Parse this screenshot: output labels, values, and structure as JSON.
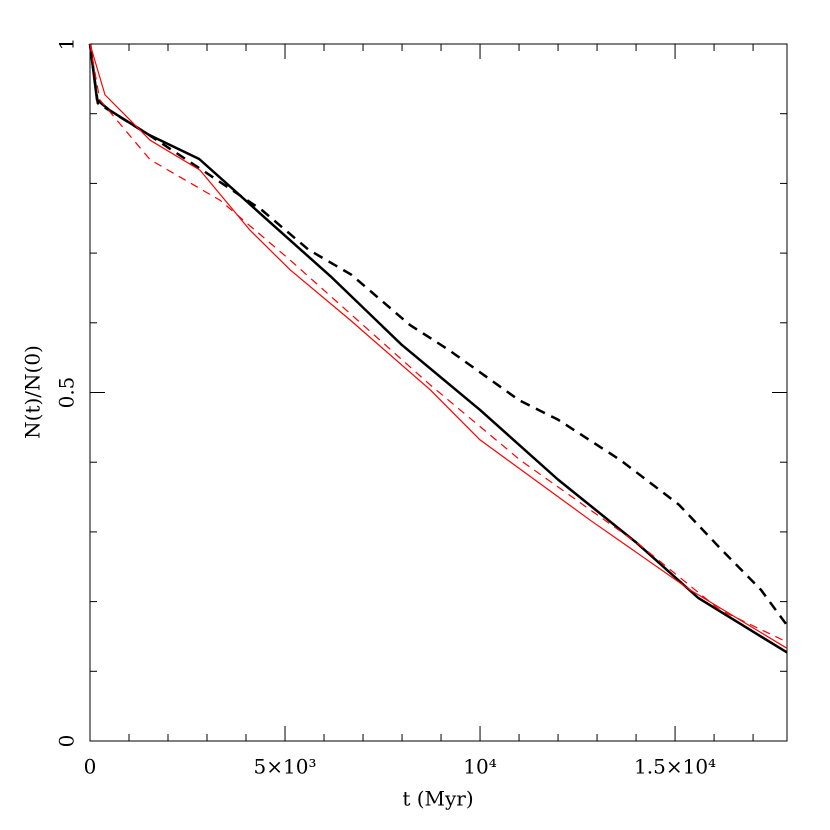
{
  "chart_data": {
    "type": "line",
    "xlabel": "t (Myr)",
    "ylabel": "N(t)/N(0)",
    "xlim": [
      0,
      17870
    ],
    "ylim": [
      0,
      1
    ],
    "xticks": [
      0,
      {
        "value": 5000,
        "label": "5×10³"
      },
      {
        "value": 10000,
        "label": "10⁴"
      },
      {
        "value": 15000,
        "label": "1.5×10⁴"
      }
    ],
    "xminorticks": [
      1000,
      2000,
      3000,
      4000,
      6000,
      7000,
      8000,
      9000,
      11000,
      12000,
      13000,
      14000,
      16000,
      17000
    ],
    "yticks": [
      0,
      0.5,
      1
    ],
    "yminorticks": [
      0.1,
      0.2,
      0.3,
      0.4,
      0.6,
      0.7,
      0.8,
      0.9
    ],
    "series": [
      {
        "color": "#000000",
        "dash": "none",
        "width": 2.5,
        "x": [
          0,
          180,
          500,
          1500,
          2800,
          4400,
          6200,
          8000,
          10000,
          12000,
          14000,
          15600,
          17870
        ],
        "values": [
          1,
          0.92,
          0.905,
          0.87,
          0.835,
          0.755,
          0.665,
          0.568,
          0.475,
          0.375,
          0.285,
          0.205,
          0.127
        ]
      },
      {
        "color": "#000000",
        "dash": "10,7",
        "width": 2.5,
        "x": [
          0,
          200,
          1500,
          2800,
          4400,
          5600,
          6700,
          8200,
          9200,
          11000,
          12000,
          13600,
          15100,
          16200,
          17200,
          17870
        ],
        "values": [
          1,
          0.915,
          0.87,
          0.822,
          0.762,
          0.705,
          0.669,
          0.597,
          0.561,
          0.489,
          0.461,
          0.403,
          0.339,
          0.274,
          0.217,
          0.166
        ]
      },
      {
        "color": "#ff0000",
        "dash": "none",
        "width": 1.2,
        "x": [
          0,
          385,
          1540,
          2820,
          4100,
          5130,
          6670,
          8720,
          10000,
          12820,
          15380,
          17870
        ],
        "values": [
          1,
          0.927,
          0.862,
          0.819,
          0.733,
          0.676,
          0.604,
          0.504,
          0.432,
          0.317,
          0.217,
          0.133
        ]
      },
      {
        "color": "#ff0000",
        "dash": "8,6",
        "width": 1.2,
        "x": [
          0,
          250,
          1540,
          3330,
          5130,
          8720,
          11030,
          14100,
          16150,
          17870
        ],
        "values": [
          1,
          0.92,
          0.834,
          0.776,
          0.69,
          0.511,
          0.403,
          0.281,
          0.188,
          0.142
        ]
      }
    ]
  }
}
